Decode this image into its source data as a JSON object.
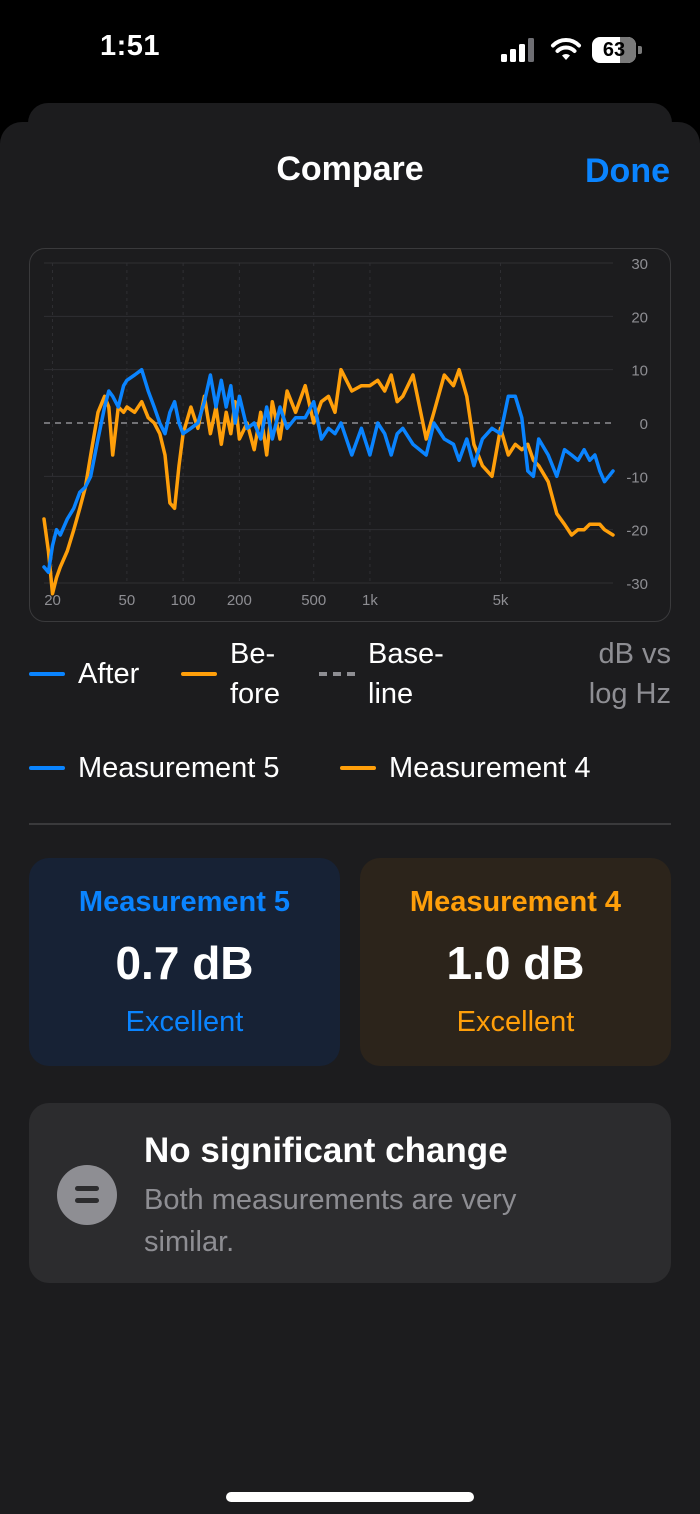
{
  "status_bar": {
    "time": "1:51",
    "battery": "63"
  },
  "sheet": {
    "title": "Compare",
    "done_label": "Done"
  },
  "legend": {
    "after": "After",
    "before": "Be-\nfore",
    "baseline": "Base-\nline",
    "axis_note": "dB vs\nlog Hz",
    "series_a": "Measurement 5",
    "series_b": "Measurement 4"
  },
  "colors": {
    "blue": "#0a84ff",
    "orange": "#ff9f0a",
    "baseline": "#8e8e93"
  },
  "cards": [
    {
      "name": "Measurement 5",
      "value": "0.7 dB",
      "rating": "Excellent",
      "accent": "#0a84ff"
    },
    {
      "name": "Measurement 4",
      "value": "1.0 dB",
      "rating": "Excellent",
      "accent": "#ff9f0a"
    }
  ],
  "summary": {
    "title": "No significant change",
    "text": "Both measurements are very similar.",
    "icon": "equal-icon"
  },
  "chart_data": {
    "type": "line",
    "x_scale": "log",
    "xlim": [
      18,
      20000
    ],
    "ylim": [
      -30,
      30
    ],
    "x_ticks": [
      20,
      50,
      100,
      200,
      500,
      1000,
      5000
    ],
    "x_tick_labels": [
      "20",
      "50",
      "100",
      "200",
      "500",
      "1k",
      "5k"
    ],
    "y_ticks": [
      30,
      20,
      10,
      0,
      -10,
      -20,
      -30
    ],
    "y_tick_labels": [
      "30",
      "20",
      "10",
      "0",
      "-10",
      "-20",
      "-30"
    ],
    "baseline": 0,
    "series": [
      {
        "name": "After",
        "color": "#0a84ff",
        "x": [
          18,
          19,
          20,
          21,
          22,
          24,
          26,
          28,
          30,
          32,
          35,
          38,
          40,
          42,
          45,
          48,
          50,
          55,
          60,
          65,
          70,
          75,
          80,
          85,
          90,
          95,
          100,
          110,
          120,
          130,
          140,
          150,
          160,
          170,
          180,
          190,
          200,
          220,
          240,
          260,
          280,
          300,
          330,
          360,
          400,
          450,
          500,
          550,
          600,
          650,
          700,
          800,
          900,
          1000,
          1100,
          1200,
          1300,
          1400,
          1500,
          1700,
          2000,
          2200,
          2500,
          2800,
          3000,
          3300,
          3600,
          4000,
          4500,
          5000,
          5500,
          6000,
          6500,
          7000,
          7500,
          8000,
          9000,
          10000,
          11000,
          12000,
          13000,
          14000,
          15000,
          16000,
          17000,
          18000,
          20000
        ],
        "y": [
          -27,
          -28,
          -23,
          -20,
          -21,
          -18,
          -16,
          -13,
          -12,
          -10,
          -3,
          3,
          6,
          5,
          3,
          7,
          8,
          9,
          10,
          6,
          3,
          0,
          -2,
          2,
          4,
          0,
          -2,
          -1,
          0,
          4,
          9,
          3,
          8,
          3,
          7,
          0,
          5,
          -1,
          0,
          -3,
          3,
          -3,
          3,
          -1,
          1,
          1,
          4,
          -3,
          -1,
          -2,
          0,
          -6,
          -1,
          -6,
          0,
          -2,
          -6,
          -2,
          -1,
          -4,
          -6,
          0,
          -3,
          -4,
          -7,
          -3,
          -8,
          -3,
          -1,
          -2,
          5,
          5,
          1,
          -9,
          -10,
          -3,
          -6,
          -10,
          -5,
          -6,
          -7,
          -5,
          -7,
          -6,
          -9,
          -11,
          -9
        ]
      },
      {
        "name": "Before",
        "color": "#ff9f0a",
        "x": [
          18,
          19,
          20,
          21,
          22,
          24,
          26,
          28,
          30,
          32,
          35,
          38,
          40,
          42,
          45,
          48,
          50,
          55,
          60,
          65,
          70,
          75,
          80,
          85,
          90,
          95,
          100,
          110,
          120,
          130,
          140,
          150,
          160,
          170,
          180,
          190,
          200,
          220,
          240,
          260,
          280,
          300,
          330,
          360,
          400,
          450,
          500,
          550,
          600,
          650,
          700,
          800,
          900,
          1000,
          1100,
          1200,
          1300,
          1400,
          1500,
          1700,
          2000,
          2200,
          2500,
          2800,
          3000,
          3300,
          3600,
          4000,
          4500,
          5000,
          5500,
          6000,
          6500,
          7000,
          7500,
          8000,
          9000,
          10000,
          11000,
          12000,
          13000,
          14000,
          15000,
          16000,
          17000,
          18000,
          20000
        ],
        "y": [
          -18,
          -24,
          -32,
          -29,
          -27,
          -24,
          -20,
          -16,
          -12,
          -6,
          2,
          5,
          3,
          -6,
          3,
          2,
          3,
          2,
          4,
          1,
          0,
          -2,
          -6,
          -15,
          -16,
          -8,
          -2,
          3,
          -1,
          5,
          -2,
          3,
          -4,
          2,
          -2,
          4,
          -3,
          0,
          -5,
          2,
          -6,
          4,
          -3,
          6,
          2,
          7,
          0,
          4,
          5,
          2,
          10,
          6,
          7,
          7,
          8,
          6,
          9,
          4,
          5,
          9,
          -3,
          2,
          9,
          7,
          10,
          5,
          -4,
          -8,
          -10,
          -1,
          -6,
          -4,
          -5,
          -4,
          -7,
          -8,
          -11,
          -17,
          -19,
          -21,
          -20,
          -20,
          -19,
          -19,
          -19,
          -20,
          -21
        ]
      }
    ]
  }
}
